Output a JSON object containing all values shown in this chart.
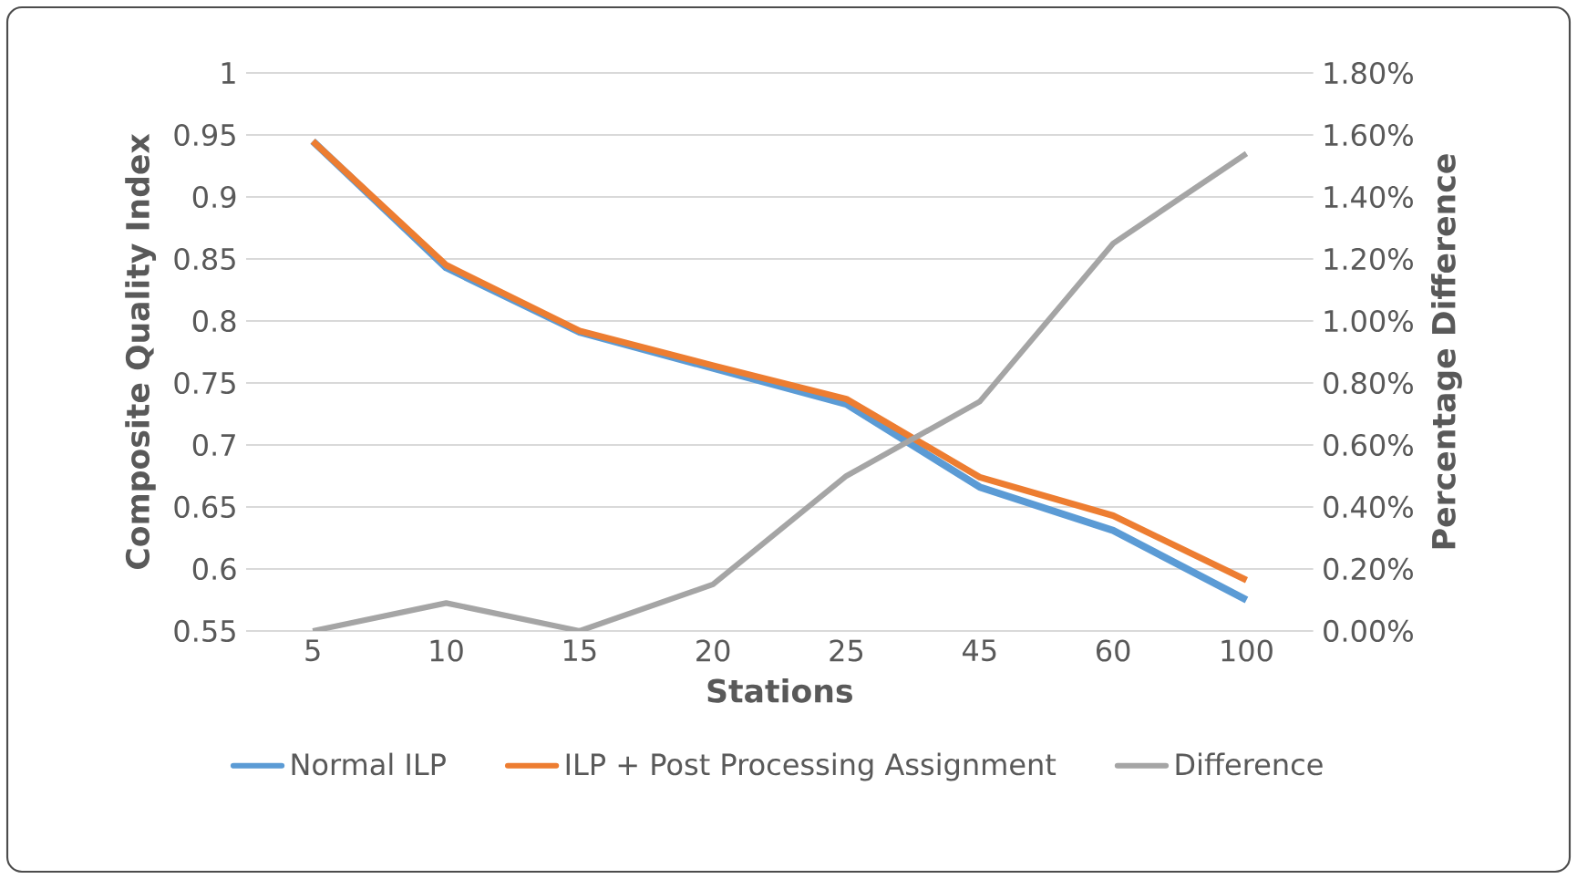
{
  "chart_data": {
    "type": "line",
    "xlabel": "Stations",
    "ylabel": "Composite Quality Index",
    "y2label": "Percentage Difference",
    "categories": [
      "5",
      "10",
      "15",
      "20",
      "25",
      "45",
      "60",
      "100"
    ],
    "series": [
      {
        "name": "Normal ILP",
        "color": "#5b9bd5",
        "values": [
          0.945,
          0.843,
          0.791,
          0.762,
          0.733,
          0.666,
          0.631,
          0.575
        ]
      },
      {
        "name": "ILP + Post Processing Assignment",
        "color": "#ed7d31",
        "values": [
          0.945,
          0.845,
          0.792,
          0.764,
          0.737,
          0.674,
          0.643,
          0.591
        ]
      },
      {
        "name": "Difference",
        "color": "#a5a5a5",
        "axis": "y2",
        "values": [
          0,
          0.09,
          0,
          0.15,
          0.5,
          0.74,
          1.25,
          1.54
        ]
      }
    ],
    "ylim": [
      0.55,
      1
    ],
    "yticks": [
      0.55,
      0.6,
      0.65,
      0.7,
      0.75,
      0.8,
      0.85,
      0.9,
      0.95,
      1
    ],
    "y2lim": [
      0,
      1.8
    ],
    "y2ticks": [
      {
        "value": 0,
        "label": "0.00%"
      },
      {
        "value": 0.2,
        "label": "0.20%"
      },
      {
        "value": 0.4,
        "label": "0.40%"
      },
      {
        "value": 0.6,
        "label": "0.60%"
      },
      {
        "value": 0.8,
        "label": "0.80%"
      },
      {
        "value": 1.0,
        "label": "1.00%"
      },
      {
        "value": 1.2,
        "label": "1.20%"
      },
      {
        "value": 1.4,
        "label": "1.40%"
      },
      {
        "value": 1.6,
        "label": "1.60%"
      },
      {
        "value": 1.8,
        "label": "1.80%"
      }
    ],
    "grid": "y",
    "legend": "bottom",
    "marker": "none",
    "line_style": "solid"
  }
}
